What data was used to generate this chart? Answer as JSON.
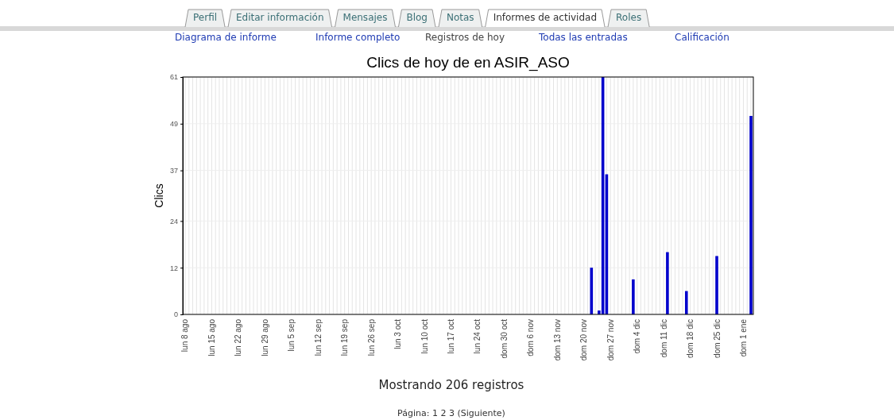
{
  "chart_data": {
    "type": "bar",
    "title": "Clics de hoy de en ASIR_ASO",
    "ylabel": "Clics",
    "categories": [
      "lun 8 ago",
      null,
      null,
      null,
      null,
      null,
      null,
      "lun 15 ago",
      null,
      null,
      null,
      null,
      null,
      null,
      "lun 22 ago",
      null,
      null,
      null,
      null,
      null,
      null,
      "lun 29 ago",
      null,
      null,
      null,
      null,
      null,
      null,
      "lun 5 sep",
      null,
      null,
      null,
      null,
      null,
      null,
      "lun 12 sep",
      null,
      null,
      null,
      null,
      null,
      null,
      "lun 19 sep",
      null,
      null,
      null,
      null,
      null,
      null,
      "lun 26 sep",
      null,
      null,
      null,
      null,
      null,
      null,
      "lun 3 oct",
      null,
      null,
      null,
      null,
      null,
      null,
      "lun 10 oct",
      null,
      null,
      null,
      null,
      null,
      null,
      "lun 17 oct",
      null,
      null,
      null,
      null,
      null,
      null,
      "lun 24 oct",
      null,
      null,
      null,
      null,
      null,
      null,
      "dom 30 oct",
      null,
      null,
      null,
      null,
      null,
      null,
      "dom 6 nov",
      null,
      null,
      null,
      null,
      null,
      null,
      "dom 13 nov",
      null,
      null,
      null,
      null,
      null,
      null,
      "dom 20 nov",
      null,
      null,
      null,
      null,
      null,
      null,
      "dom 27 nov",
      null,
      null,
      null,
      null,
      null,
      null,
      "dom 4 dic",
      null,
      null,
      null,
      null,
      null,
      null,
      "dom 11 dic",
      null,
      null,
      null,
      null,
      null,
      null,
      "dom 18 dic",
      null,
      null,
      null,
      null,
      null,
      null,
      "dom 25 dic",
      null,
      null,
      null,
      null,
      null,
      null,
      "dom 1 ene",
      null,
      null
    ],
    "values": [
      0,
      0,
      0,
      0,
      0,
      0,
      0,
      0,
      0,
      0,
      0,
      0,
      0,
      0,
      0,
      0,
      0,
      0,
      0,
      0,
      0,
      0,
      0,
      0,
      0,
      0,
      0,
      0,
      0,
      0,
      0,
      0,
      0,
      0,
      0,
      0,
      0,
      0,
      0,
      0,
      0,
      0,
      0,
      0,
      0,
      0,
      0,
      0,
      0,
      0,
      0,
      0,
      0,
      0,
      0,
      0,
      0,
      0,
      0,
      0,
      0,
      0,
      0,
      0,
      0,
      0,
      0,
      0,
      0,
      0,
      0,
      0,
      0,
      0,
      0,
      0,
      0,
      0,
      0,
      0,
      0,
      0,
      0,
      0,
      0,
      0,
      0,
      0,
      0,
      0,
      0,
      0,
      0,
      0,
      0,
      0,
      0,
      0,
      0,
      0,
      0,
      0,
      0,
      0,
      0,
      0,
      0,
      12,
      0,
      1,
      61,
      36,
      0,
      0,
      0,
      0,
      0,
      0,
      9,
      0,
      0,
      0,
      0,
      0,
      0,
      0,
      0,
      16,
      0,
      0,
      0,
      0,
      6,
      0,
      0,
      0,
      0,
      0,
      0,
      0,
      15,
      0,
      0,
      0,
      0,
      0,
      0,
      0,
      0,
      51
    ],
    "color": "#0000cc",
    "ylim": [
      0,
      61
    ],
    "yticks": [
      0,
      12,
      24,
      37,
      49,
      61
    ],
    "grid": true,
    "annotations": [
      "Perfil",
      "Editar información",
      "Mensajes",
      "Blog",
      "Notas",
      "Informes de actividad",
      "Roles",
      "Diagrama de informe",
      "Informe completo",
      "Registros de hoy",
      "Todas las entradas",
      "Calificación",
      "Mostrando 206 registros",
      "Página: 1 2 3 (Siguiente)"
    ]
  }
}
